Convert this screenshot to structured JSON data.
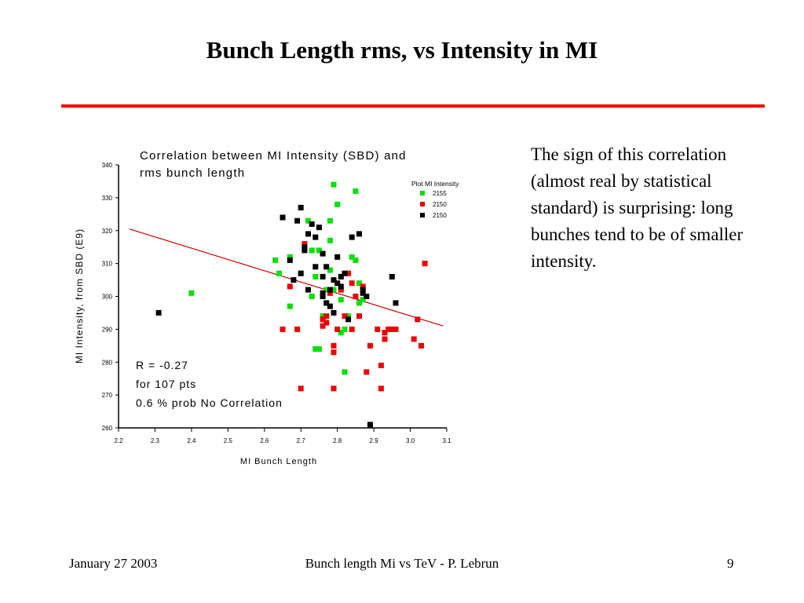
{
  "slide": {
    "title": "Bunch Length rms, vs Intensity in MI",
    "rule_color": "#ff0000",
    "side_note": "The sign of this correlation (almost real by statistical standard) is surprising: long bunches tend to be of smaller intensity.",
    "footer_date": "January  27  2003",
    "footer_center": "Bunch length Mi vs TeV - P. Lebrun",
    "footer_page": "9"
  },
  "chart_data": {
    "type": "scatter",
    "title": "Correlation between MI Intensity (SBD) and rms bunch length",
    "xlabel": "MI Bunch Length",
    "ylabel": "MI Intensity, from SBD (E9)",
    "xlim": [
      2.2,
      3.1
    ],
    "ylim": [
      260,
      340
    ],
    "x_ticks": [
      "2.2",
      "2.3",
      "2.4",
      "2.5",
      "2.6",
      "2.7",
      "2.8",
      "2.9",
      "3.0",
      "3.1"
    ],
    "y_ticks": [
      "260",
      "270",
      "280",
      "290",
      "300",
      "310",
      "320",
      "330",
      "340"
    ],
    "legend_title": "Plot MI Intensity",
    "legend_position": "top-right",
    "grid": false,
    "annotations": [
      "R = -0.27",
      "for 107 pts",
      "0.6 % prob No Correlation"
    ],
    "fit_line": {
      "color": "#cc0000",
      "points": [
        [
          2.23,
          320.5
        ],
        [
          3.09,
          291.0
        ]
      ]
    },
    "series": [
      {
        "name": "2155",
        "color": "#00e000",
        "points": [
          [
            2.4,
            301
          ],
          [
            2.63,
            311
          ],
          [
            2.64,
            307
          ],
          [
            2.67,
            312
          ],
          [
            2.67,
            297
          ],
          [
            2.7,
            307
          ],
          [
            2.72,
            323
          ],
          [
            2.73,
            300
          ],
          [
            2.73,
            314
          ],
          [
            2.74,
            306
          ],
          [
            2.74,
            284
          ],
          [
            2.75,
            284
          ],
          [
            2.75,
            314
          ],
          [
            2.76,
            294
          ],
          [
            2.77,
            302
          ],
          [
            2.78,
            323
          ],
          [
            2.78,
            317
          ],
          [
            2.78,
            308
          ],
          [
            2.79,
            334
          ],
          [
            2.79,
            302
          ],
          [
            2.8,
            328
          ],
          [
            2.81,
            299
          ],
          [
            2.81,
            289
          ],
          [
            2.82,
            290
          ],
          [
            2.82,
            277
          ],
          [
            2.83,
            294
          ],
          [
            2.84,
            312
          ],
          [
            2.85,
            332
          ],
          [
            2.85,
            311
          ],
          [
            2.86,
            304
          ],
          [
            2.86,
            298
          ],
          [
            2.87,
            299
          ]
        ]
      },
      {
        "name": "2150",
        "color": "#ee0000",
        "points": [
          [
            2.65,
            290
          ],
          [
            2.67,
            303
          ],
          [
            2.69,
            290
          ],
          [
            2.7,
            272
          ],
          [
            2.71,
            316
          ],
          [
            2.76,
            291
          ],
          [
            2.76,
            293
          ],
          [
            2.77,
            294
          ],
          [
            2.77,
            292
          ],
          [
            2.78,
            301
          ],
          [
            2.79,
            285
          ],
          [
            2.79,
            283
          ],
          [
            2.79,
            272
          ],
          [
            2.8,
            290
          ],
          [
            2.81,
            302
          ],
          [
            2.82,
            294
          ],
          [
            2.83,
            307
          ],
          [
            2.84,
            304
          ],
          [
            2.84,
            290
          ],
          [
            2.85,
            300
          ],
          [
            2.86,
            294
          ],
          [
            2.87,
            303
          ],
          [
            2.88,
            277
          ],
          [
            2.89,
            285
          ],
          [
            2.91,
            290
          ],
          [
            2.92,
            272
          ],
          [
            2.92,
            279
          ],
          [
            2.93,
            289
          ],
          [
            2.93,
            287
          ],
          [
            2.94,
            290
          ],
          [
            2.95,
            290
          ],
          [
            2.96,
            290
          ],
          [
            3.01,
            287
          ],
          [
            3.02,
            293
          ],
          [
            3.03,
            285
          ],
          [
            3.04,
            310
          ]
        ]
      },
      {
        "name": "2150",
        "color": "#000000",
        "points": [
          [
            2.31,
            295
          ],
          [
            2.65,
            324
          ],
          [
            2.67,
            311
          ],
          [
            2.68,
            305
          ],
          [
            2.69,
            323
          ],
          [
            2.7,
            327
          ],
          [
            2.7,
            307
          ],
          [
            2.71,
            314
          ],
          [
            2.71,
            315
          ],
          [
            2.72,
            319
          ],
          [
            2.72,
            302
          ],
          [
            2.73,
            322
          ],
          [
            2.74,
            318
          ],
          [
            2.75,
            321
          ],
          [
            2.76,
            313
          ],
          [
            2.76,
            301
          ],
          [
            2.76,
            300
          ],
          [
            2.77,
            309
          ],
          [
            2.77,
            298
          ],
          [
            2.78,
            297
          ],
          [
            2.78,
            302
          ],
          [
            2.79,
            295
          ],
          [
            2.79,
            305
          ],
          [
            2.8,
            304
          ],
          [
            2.8,
            312
          ],
          [
            2.81,
            306
          ],
          [
            2.82,
            307
          ],
          [
            2.83,
            293
          ],
          [
            2.84,
            318
          ],
          [
            2.86,
            319
          ],
          [
            2.87,
            302
          ],
          [
            2.88,
            300
          ],
          [
            2.89,
            261
          ],
          [
            2.95,
            306
          ],
          [
            2.96,
            298
          ],
          [
            2.76,
            306
          ],
          [
            2.81,
            303
          ],
          [
            2.87,
            301
          ],
          [
            2.74,
            309
          ]
        ]
      }
    ]
  }
}
